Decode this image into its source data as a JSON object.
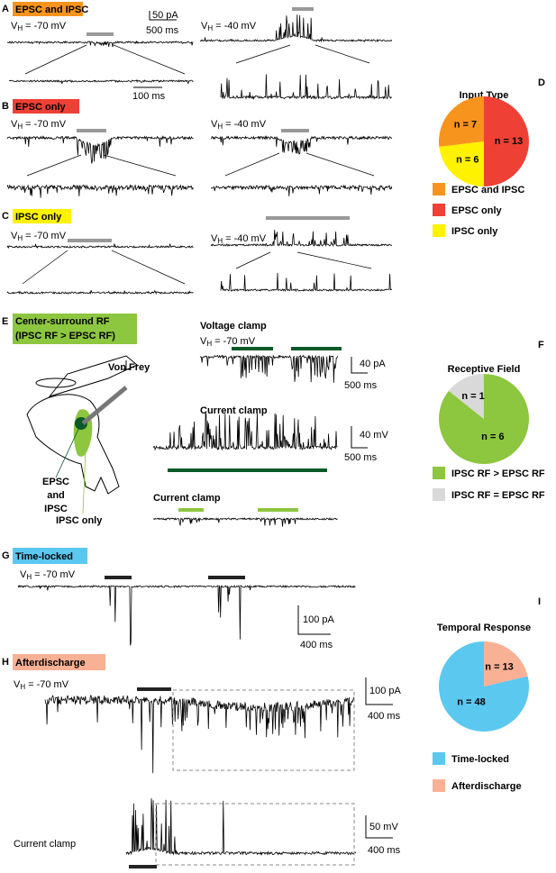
{
  "vh": {
    "symbol": "V",
    "subscript": "H"
  },
  "panels": {
    "A": {
      "letter": "A",
      "label": "EPSC and IPSC",
      "vh_left": "= -70 mV",
      "vh_right": "= -40 mV",
      "scale_current": "50 pA",
      "scale_time": "500 ms",
      "scale_zoom_time": "100 ms"
    },
    "B": {
      "letter": "B",
      "label": "EPSC only",
      "vh_left": "= -70 mV",
      "vh_right": "= -40 mV"
    },
    "C": {
      "letter": "C",
      "label": "IPSC only",
      "vh_left": "= -70 mV",
      "vh_right": "= -40 mV"
    },
    "D": {
      "letter": "D"
    },
    "E": {
      "letter": "E",
      "label_lines": [
        "Center-surround RF",
        "(IPSC RF > EPSC RF)"
      ],
      "probe": "Von Frey",
      "site_lines": [
        "EPSC",
        "and",
        "IPSC"
      ],
      "site_ipsc_only": "IPSC only",
      "voltage_clamp": "Voltage clamp",
      "vh": "= -70 mV",
      "scale_current": "40 pA",
      "scale_time_1": "500 ms",
      "current_clamp": "Current clamp",
      "scale_voltage": "40 mV",
      "scale_time_2": "500 ms",
      "current_clamp_2": "Current clamp"
    },
    "F": {
      "letter": "F"
    },
    "G": {
      "letter": "G",
      "label": "Time-locked",
      "vh": "= -70 mV",
      "scale_current": "100 pA",
      "scale_time": "400 ms"
    },
    "H": {
      "letter": "H",
      "label": "Afterdischarge",
      "vh": "= -70 mV",
      "scale_current": "100 pA",
      "scale_time_1": "400 ms",
      "current_clamp": "Current clamp",
      "scale_voltage": "50 mV",
      "scale_time_2": "400 ms"
    },
    "I": {
      "letter": "I"
    }
  },
  "chart_data": [
    {
      "type": "pie",
      "title": "Input Type",
      "categories": [
        "EPSC and IPSC",
        "EPSC only",
        "IPSC only"
      ],
      "values": [
        7,
        13,
        6
      ],
      "value_labels": [
        "n = 7",
        "n = 13",
        "n = 6"
      ],
      "colors": [
        "#f7941d",
        "#ee4035",
        "#fff200"
      ]
    },
    {
      "type": "pie",
      "title": "Receptive Field",
      "categories": [
        "IPSC RF > EPSC RF",
        "IPSC RF = EPSC RF"
      ],
      "values": [
        6,
        1
      ],
      "value_labels": [
        "n = 6",
        "n = 1"
      ],
      "colors": [
        "#8dc63f",
        "#d9d9d9"
      ]
    },
    {
      "type": "pie",
      "title": "Temporal Response",
      "categories": [
        "Time-locked",
        "Afterdischarge"
      ],
      "values": [
        48,
        13
      ],
      "value_labels": [
        "n = 48",
        "n = 13"
      ],
      "colors": [
        "#5bc8f0",
        "#f8b195"
      ]
    }
  ]
}
